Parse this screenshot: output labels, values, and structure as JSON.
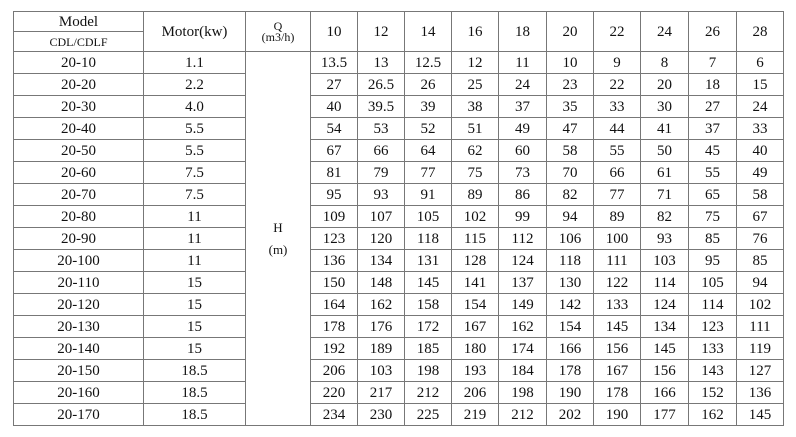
{
  "header": {
    "model_label": "Model",
    "model_sub_label": "CDL/CDLF",
    "motor_label": "Motor(kw)",
    "q_label": "Q",
    "q_unit": "(m3/h)",
    "h_label": "H",
    "h_unit": "(m)",
    "flows": [
      "10",
      "12",
      "14",
      "16",
      "18",
      "20",
      "22",
      "24",
      "26",
      "28"
    ]
  },
  "rows": [
    {
      "model": "20-10",
      "motor": "1.1",
      "h": [
        "13.5",
        "13",
        "12.5",
        "12",
        "11",
        "10",
        "9",
        "8",
        "7",
        "6"
      ]
    },
    {
      "model": "20-20",
      "motor": "2.2",
      "h": [
        "27",
        "26.5",
        "26",
        "25",
        "24",
        "23",
        "22",
        "20",
        "18",
        "15"
      ]
    },
    {
      "model": "20-30",
      "motor": "4.0",
      "h": [
        "40",
        "39.5",
        "39",
        "38",
        "37",
        "35",
        "33",
        "30",
        "27",
        "24"
      ]
    },
    {
      "model": "20-40",
      "motor": "5.5",
      "h": [
        "54",
        "53",
        "52",
        "51",
        "49",
        "47",
        "44",
        "41",
        "37",
        "33"
      ]
    },
    {
      "model": "20-50",
      "motor": "5.5",
      "h": [
        "67",
        "66",
        "64",
        "62",
        "60",
        "58",
        "55",
        "50",
        "45",
        "40"
      ]
    },
    {
      "model": "20-60",
      "motor": "7.5",
      "h": [
        "81",
        "79",
        "77",
        "75",
        "73",
        "70",
        "66",
        "61",
        "55",
        "49"
      ]
    },
    {
      "model": "20-70",
      "motor": "7.5",
      "h": [
        "95",
        "93",
        "91",
        "89",
        "86",
        "82",
        "77",
        "71",
        "65",
        "58"
      ]
    },
    {
      "model": "20-80",
      "motor": "11",
      "h": [
        "109",
        "107",
        "105",
        "102",
        "99",
        "94",
        "89",
        "82",
        "75",
        "67"
      ]
    },
    {
      "model": "20-90",
      "motor": "11",
      "h": [
        "123",
        "120",
        "118",
        "115",
        "112",
        "106",
        "100",
        "93",
        "85",
        "76"
      ]
    },
    {
      "model": "20-100",
      "motor": "11",
      "h": [
        "136",
        "134",
        "131",
        "128",
        "124",
        "118",
        "111",
        "103",
        "95",
        "85"
      ]
    },
    {
      "model": "20-110",
      "motor": "15",
      "h": [
        "150",
        "148",
        "145",
        "141",
        "137",
        "130",
        "122",
        "114",
        "105",
        "94"
      ]
    },
    {
      "model": "20-120",
      "motor": "15",
      "h": [
        "164",
        "162",
        "158",
        "154",
        "149",
        "142",
        "133",
        "124",
        "114",
        "102"
      ]
    },
    {
      "model": "20-130",
      "motor": "15",
      "h": [
        "178",
        "176",
        "172",
        "167",
        "162",
        "154",
        "145",
        "134",
        "123",
        "111"
      ]
    },
    {
      "model": "20-140",
      "motor": "15",
      "h": [
        "192",
        "189",
        "185",
        "180",
        "174",
        "166",
        "156",
        "145",
        "133",
        "119"
      ]
    },
    {
      "model": "20-150",
      "motor": "18.5",
      "h": [
        "206",
        "103",
        "198",
        "193",
        "184",
        "178",
        "167",
        "156",
        "143",
        "127"
      ]
    },
    {
      "model": "20-160",
      "motor": "18.5",
      "h": [
        "220",
        "217",
        "212",
        "206",
        "198",
        "190",
        "178",
        "166",
        "152",
        "136"
      ]
    },
    {
      "model": "20-170",
      "motor": "18.5",
      "h": [
        "234",
        "230",
        "225",
        "219",
        "212",
        "202",
        "190",
        "177",
        "162",
        "145"
      ]
    }
  ]
}
